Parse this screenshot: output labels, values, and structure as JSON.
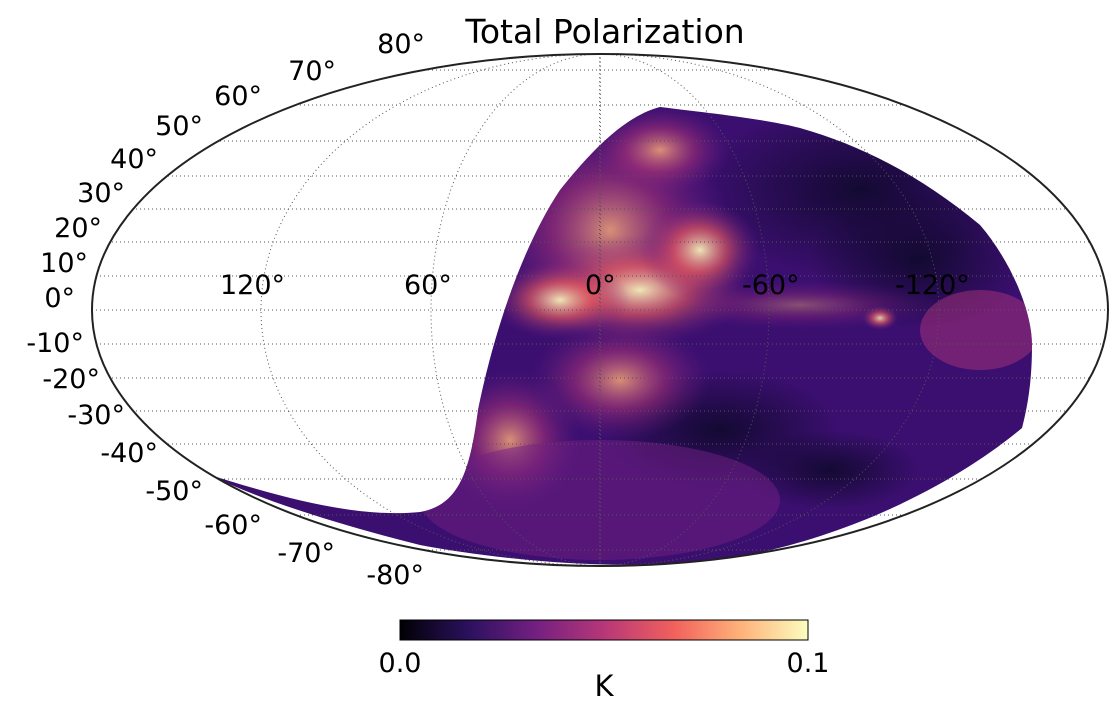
{
  "title": "Total Polarization",
  "projection": "mollweide",
  "latitude_labels": [
    "80°",
    "70°",
    "60°",
    "50°",
    "40°",
    "30°",
    "20°",
    "10°",
    "0°",
    "-10°",
    "-20°",
    "-30°",
    "-40°",
    "-50°",
    "-60°",
    "-70°",
    "-80°"
  ],
  "longitude_labels": [
    "120°",
    "60°",
    "0°",
    "-60°",
    "-120°"
  ],
  "colorbar": {
    "min_label": "0.0",
    "max_label": "0.1",
    "unit": "K",
    "colormap": "magma",
    "colors": [
      "#000004",
      "#2c115f",
      "#721f81",
      "#b73779",
      "#f1605d",
      "#feb078",
      "#fcfdbf"
    ]
  },
  "colors": {
    "background": "#ffffff",
    "map_base": "#3b0f70",
    "graticule": "#555555"
  }
}
